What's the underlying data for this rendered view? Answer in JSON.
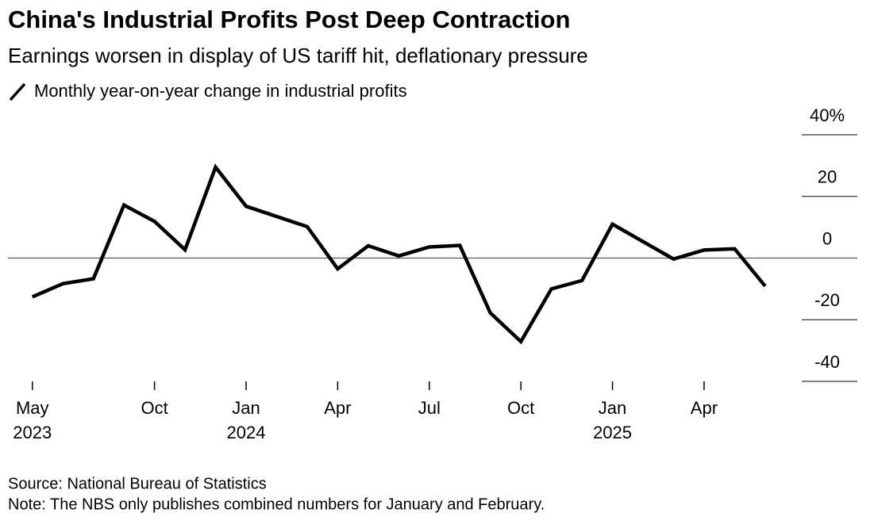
{
  "chart_data": {
    "type": "line",
    "title": "China's Industrial Profits Post Deep Contraction",
    "subtitle": "Earnings worsen in display of US tariff hit, deflationary pressure",
    "source": "Source: National Bureau of Statistics",
    "note": "Note: The NBS only publishes combined numbers for January and February.",
    "x": [
      0,
      1,
      2,
      3,
      4,
      5,
      6,
      7,
      9,
      10,
      11,
      12,
      13,
      14,
      15,
      16,
      17,
      18,
      19,
      21,
      22,
      23,
      24
    ],
    "series": [
      {
        "name": "Monthly year-on-year change in industrial profits",
        "color": "#000000",
        "values": [
          -12.6,
          -8.3,
          -6.7,
          17.2,
          11.9,
          2.7,
          29.5,
          16.8,
          10.2,
          -3.5,
          4.0,
          0.7,
          3.6,
          4.1,
          -17.8,
          -27.1,
          -10.0,
          -7.3,
          11.0,
          -0.3,
          2.6,
          3.0,
          -9.1
        ]
      }
    ],
    "xlim": [
      -0.8,
      25.2
    ],
    "xticks": [
      {
        "value": 0,
        "label": "May"
      },
      {
        "value": 4,
        "label": "Oct"
      },
      {
        "value": 7,
        "label": "Jan"
      },
      {
        "value": 10,
        "label": "Apr"
      },
      {
        "value": 13,
        "label": "Jul"
      },
      {
        "value": 16,
        "label": "Oct"
      },
      {
        "value": 19,
        "label": "Jan"
      },
      {
        "value": 22,
        "label": "Apr"
      }
    ],
    "xtick_years": [
      {
        "value": 0,
        "label": "2023"
      },
      {
        "value": 7,
        "label": "2024"
      },
      {
        "value": 19,
        "label": "2025"
      }
    ],
    "ylim": [
      -40,
      40
    ],
    "yticks": [
      {
        "value": 40,
        "label": "40%"
      },
      20,
      0,
      -20,
      -40
    ]
  }
}
